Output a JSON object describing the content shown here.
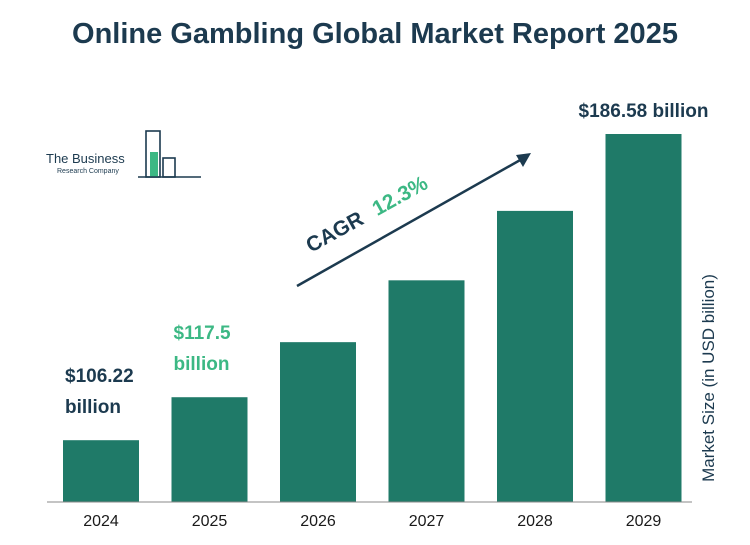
{
  "colors": {
    "bar": "#1f7a68",
    "title": "#1c3a4f",
    "label_dark": "#1c3a4f",
    "label_accent": "#3cb884",
    "axis": "#555555"
  },
  "logo": {
    "name_line1": "The Business",
    "name_line2": "Research Company"
  },
  "chart_data": {
    "type": "bar",
    "title": "Online Gambling Global Market Report 2025",
    "xlabel": "",
    "ylabel": "Market Size (in USD billion)",
    "categories": [
      "2024",
      "2025",
      "2026",
      "2027",
      "2028",
      "2029"
    ],
    "values": [
      106.22,
      117.5,
      131.95,
      148.18,
      166.4,
      186.58
    ],
    "ylim": [
      90,
      190
    ],
    "grid": false,
    "annotations": {
      "bar_labels": [
        {
          "index": 0,
          "line1": "$106.22",
          "line2": "billion",
          "color": "dark"
        },
        {
          "index": 1,
          "line1": "$117.5",
          "line2": "billion",
          "color": "accent"
        },
        {
          "index": 5,
          "line1": "$186.58 billion",
          "line2": "",
          "color": "dark"
        }
      ],
      "cagr_label": "CAGR",
      "cagr_value": "12.3%"
    }
  }
}
